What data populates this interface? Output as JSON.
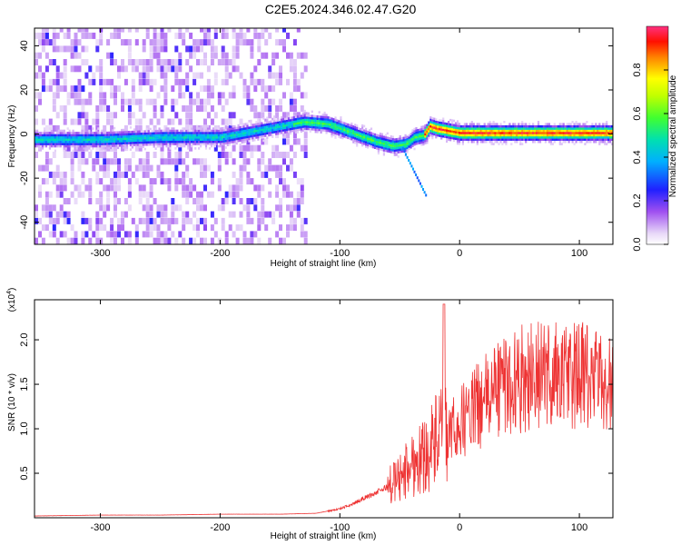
{
  "title": "C2E5.2024.346.02.47.G20",
  "chart_data": [
    {
      "type": "heatmap",
      "xlabel": "Height of straight line (km)",
      "ylabel": "Frequency (Hz)",
      "xlim": [
        -355,
        128
      ],
      "ylim": [
        -50,
        48
      ],
      "xticks": [
        -300,
        -200,
        -100,
        0,
        100
      ],
      "xtick_labels": [
        "-300",
        "-200",
        "-100",
        "0",
        "100"
      ],
      "yticks": [
        -40,
        -20,
        0,
        20,
        40
      ],
      "ytick_labels": [
        "-40",
        "-20",
        "0",
        "20",
        "40"
      ],
      "colorbar": {
        "label": "Normalized spectral amplitude",
        "range": [
          0.0,
          1.0
        ],
        "ticks": [
          0.0,
          0.2,
          0.4,
          0.6,
          0.8
        ],
        "tick_labels": [
          "0.0",
          "0.2",
          "0.4",
          "0.6",
          "0.8"
        ]
      },
      "ridge": {
        "x": [
          -355,
          -300,
          -250,
          -200,
          -170,
          -150,
          -130,
          -110,
          -90,
          -70,
          -55,
          -45,
          -38,
          -30,
          -25,
          -20,
          -10,
          0,
          50,
          100,
          128
        ],
        "y": [
          -3,
          -3,
          -2,
          -2,
          1,
          3,
          5,
          4,
          0,
          -4,
          -6,
          -5,
          -2,
          -1,
          3,
          2,
          1,
          0,
          0,
          0,
          0
        ]
      }
    },
    {
      "type": "line",
      "xlabel": "Height of straight line (km)",
      "ylabel": "SNR (10 * v/v)",
      "y_scale_label": "(x10",
      "y_scale_exp": "4",
      "y_scale_close": ")",
      "xlim": [
        -355,
        128
      ],
      "ylim": [
        0.0,
        2.45
      ],
      "xticks": [
        -300,
        -200,
        -100,
        0,
        100
      ],
      "xtick_labels": [
        "-300",
        "-200",
        "-100",
        "0",
        "100"
      ],
      "yticks": [
        0.5,
        1.0,
        1.5,
        2.0
      ],
      "ytick_labels": [
        "0.5",
        "1.0",
        "1.5",
        "2.0"
      ],
      "series": [
        {
          "color": "#ee3333",
          "x": [
            -355,
            -300,
            -250,
            -200,
            -150,
            -120,
            -100,
            -90,
            -80,
            -70,
            -60,
            -50,
            -40,
            -30,
            -20,
            -15,
            -10,
            0,
            10,
            20,
            30,
            40,
            50,
            60,
            70,
            80,
            90,
            100,
            110,
            120,
            128
          ],
          "y": [
            0.02,
            0.03,
            0.03,
            0.04,
            0.04,
            0.05,
            0.1,
            0.15,
            0.22,
            0.28,
            0.35,
            0.45,
            0.6,
            0.7,
            0.85,
            0.95,
            0.9,
            1.05,
            1.2,
            1.3,
            1.45,
            1.5,
            1.55,
            1.6,
            1.6,
            1.62,
            1.58,
            1.6,
            1.55,
            1.52,
            1.5
          ]
        }
      ]
    }
  ]
}
